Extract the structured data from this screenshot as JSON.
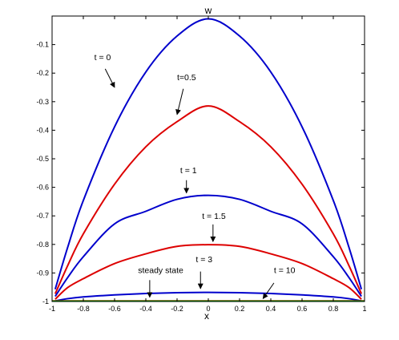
{
  "chart_data": {
    "type": "line",
    "title": "w",
    "xlabel": "x",
    "ylabel": "",
    "xlim": [
      -1,
      1
    ],
    "ylim": [
      -1,
      0
    ],
    "grid": false,
    "x_ticks": [
      -1,
      -0.8,
      -0.6,
      -0.4,
      -0.2,
      0,
      0.2,
      0.4,
      0.6,
      0.8,
      1
    ],
    "x_tick_labels": [
      "-1",
      "-0.8",
      "-0.6",
      "-0.4",
      "-0.2",
      "0",
      "0.2",
      "0.4",
      "0.6",
      "0.8",
      "1"
    ],
    "y_ticks": [
      -1,
      -0.9,
      -0.8,
      -0.7,
      -0.6,
      -0.5,
      -0.4,
      -0.3,
      -0.2,
      -0.1
    ],
    "y_tick_labels": [
      "-1",
      "-0.9",
      "-0.8",
      "-0.7",
      "-0.6",
      "-0.5",
      "-0.4",
      "-0.3",
      "-0.2",
      "-0.1"
    ],
    "series": [
      {
        "color": "#0000cc",
        "x": [
          -0.98,
          -0.9,
          -0.8,
          -0.6,
          -0.4,
          -0.2,
          0,
          0.2,
          0.4,
          0.6,
          0.8,
          0.9,
          0.98
        ],
        "y": [
          -0.957,
          -0.81,
          -0.646,
          -0.388,
          -0.196,
          -0.07,
          -0.01,
          -0.07,
          -0.196,
          -0.388,
          -0.646,
          -0.81,
          -0.957
        ]
      },
      {
        "color": "#dd0000",
        "x": [
          -0.98,
          -0.9,
          -0.8,
          -0.6,
          -0.4,
          -0.2,
          0,
          0.2,
          0.4,
          0.6,
          0.8,
          0.9,
          0.98
        ],
        "y": [
          -0.973,
          -0.874,
          -0.763,
          -0.589,
          -0.458,
          -0.37,
          -0.315,
          -0.37,
          -0.458,
          -0.589,
          -0.763,
          -0.874,
          -0.973
        ]
      },
      {
        "color": "#0000cc",
        "x": [
          -0.98,
          -0.9,
          -0.8,
          -0.6,
          -0.4,
          -0.2,
          0,
          0.2,
          0.4,
          0.6,
          0.8,
          0.9,
          0.98
        ],
        "y": [
          -0.982,
          -0.916,
          -0.843,
          -0.728,
          -0.684,
          -0.642,
          -0.628,
          -0.642,
          -0.684,
          -0.728,
          -0.843,
          -0.916,
          -0.982
        ]
      },
      {
        "color": "#dd0000",
        "x": [
          -0.98,
          -0.9,
          -0.8,
          -0.6,
          -0.4,
          -0.2,
          0,
          0.2,
          0.4,
          0.6,
          0.8,
          0.9,
          0.98
        ],
        "y": [
          -0.992,
          -0.951,
          -0.92,
          -0.867,
          -0.833,
          -0.807,
          -0.801,
          -0.807,
          -0.833,
          -0.867,
          -0.92,
          -0.951,
          -0.992
        ]
      },
      {
        "color": "#0000cc",
        "x": [
          -0.98,
          -0.9,
          -0.8,
          -0.6,
          -0.4,
          -0.2,
          0,
          0.2,
          0.4,
          0.6,
          0.8,
          0.9,
          0.98
        ],
        "y": [
          -0.998,
          -0.99,
          -0.984,
          -0.977,
          -0.972,
          -0.969,
          -0.968,
          -0.969,
          -0.972,
          -0.977,
          -0.984,
          -0.99,
          -0.998
        ]
      },
      {
        "color": "#dd0000",
        "x": [
          -1,
          1
        ],
        "y": [
          -0.998,
          -0.998
        ]
      },
      {
        "color": "#00aa00",
        "x": [
          -1,
          1
        ],
        "y": [
          -0.999,
          -0.999
        ]
      }
    ],
    "annotations": [
      {
        "text": "t = 0",
        "text_x": -0.73,
        "text_y": -0.155,
        "tail_x": -0.66,
        "tail_y": -0.185,
        "head_x": -0.6,
        "head_y": -0.25
      },
      {
        "text": "t=0.5",
        "text_x": -0.2,
        "text_y": -0.225,
        "tail_x": -0.16,
        "tail_y": -0.255,
        "head_x": -0.2,
        "head_y": -0.345
      },
      {
        "text": "t = 1",
        "text_x": -0.18,
        "text_y": -0.55,
        "tail_x": -0.14,
        "tail_y": -0.575,
        "head_x": -0.14,
        "head_y": -0.62
      },
      {
        "text": "t = 1.5",
        "text_x": -0.04,
        "text_y": -0.71,
        "tail_x": 0.03,
        "tail_y": -0.73,
        "head_x": 0.03,
        "head_y": -0.79
      },
      {
        "text": "t = 3",
        "text_x": -0.08,
        "text_y": -0.862,
        "tail_x": -0.05,
        "tail_y": -0.895,
        "head_x": -0.05,
        "head_y": -0.955
      },
      {
        "text": "steady state",
        "text_x": -0.45,
        "text_y": -0.9,
        "tail_x": -0.375,
        "tail_y": -0.925,
        "head_x": -0.375,
        "head_y": -0.985
      },
      {
        "text": "t = 10",
        "text_x": 0.42,
        "text_y": -0.9,
        "tail_x": 0.42,
        "tail_y": -0.935,
        "head_x": 0.35,
        "head_y": -0.99
      }
    ]
  }
}
